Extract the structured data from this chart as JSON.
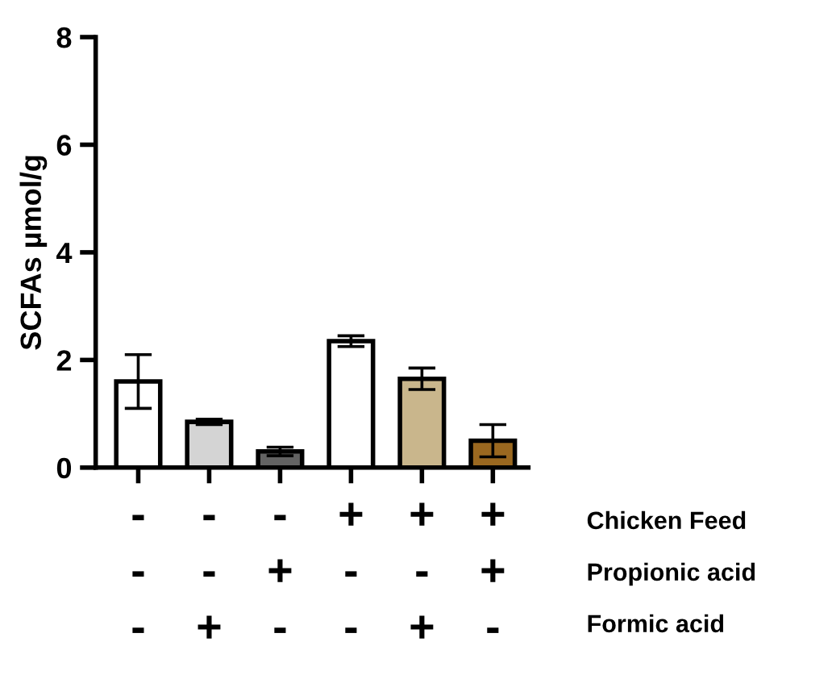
{
  "chart_data": {
    "type": "bar",
    "ylabel": "SCFAs µmol/g",
    "categories": [
      "-\n-\n-",
      "-\n-\n+",
      "-\n+\n-",
      "+\n-\n-",
      "+\n-\n+",
      "+\n+\n-"
    ],
    "values": [
      1.6,
      0.85,
      0.3,
      2.35,
      1.65,
      0.5
    ],
    "errors": [
      0.5,
      0.05,
      0.08,
      0.1,
      0.2,
      0.3
    ],
    "colors": [
      "#ffffff",
      "#d4d4d4",
      "#636363",
      "#ffffff",
      "#c9b68c",
      "#9a6820"
    ],
    "ylim": [
      0,
      8
    ],
    "yticks": [
      0,
      2,
      4,
      6,
      8
    ],
    "grid": false,
    "annotations": [
      "Chicken Feed",
      "Propionic acid",
      "Formic acid"
    ]
  }
}
